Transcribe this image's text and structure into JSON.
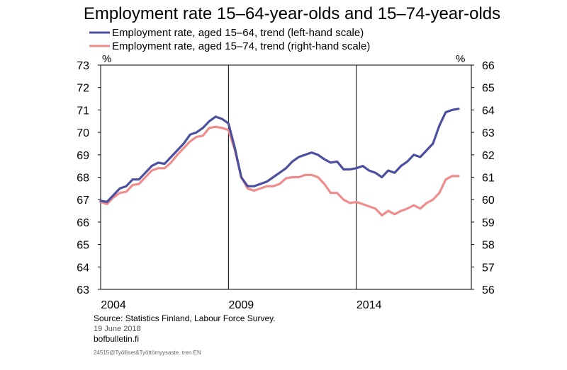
{
  "title": "Employment rate 15–64-year-olds and 15–74-year-olds",
  "chart_data": {
    "type": "line",
    "title": "Employment rate 15–64-year-olds and 15–74-year-olds",
    "left_axis": {
      "unit": "%",
      "ylim": [
        63,
        73
      ],
      "ticks": [
        "63",
        "64",
        "65",
        "66",
        "67",
        "68",
        "69",
        "70",
        "71",
        "72",
        "73"
      ]
    },
    "right_axis": {
      "unit": "%",
      "ylim": [
        56,
        66
      ],
      "ticks": [
        "56",
        "57",
        "58",
        "59",
        "60",
        "61",
        "62",
        "63",
        "64",
        "65",
        "66"
      ]
    },
    "x_ticks": [
      "2004",
      "2009",
      "2014"
    ],
    "xlim": [
      2004,
      2018.5
    ],
    "grid": "vertical lines at 2009 and 2014",
    "legend_position": "top",
    "series": [
      {
        "name": "Employment rate, aged 15–64, trend (left-hand scale)",
        "axis": "left",
        "color": "#4b4fa0",
        "x": [
          2004.0,
          2004.25,
          2004.5,
          2004.75,
          2005.0,
          2005.25,
          2005.5,
          2005.75,
          2006.0,
          2006.25,
          2006.5,
          2006.75,
          2007.0,
          2007.25,
          2007.5,
          2007.75,
          2008.0,
          2008.25,
          2008.5,
          2008.75,
          2009.0,
          2009.25,
          2009.5,
          2009.75,
          2010.0,
          2010.25,
          2010.5,
          2010.75,
          2011.0,
          2011.25,
          2011.5,
          2011.75,
          2012.0,
          2012.25,
          2012.5,
          2012.75,
          2013.0,
          2013.25,
          2013.5,
          2013.75,
          2014.0,
          2014.25,
          2014.5,
          2014.75,
          2015.0,
          2015.25,
          2015.5,
          2015.75,
          2016.0,
          2016.25,
          2016.5,
          2016.75,
          2017.0,
          2017.25,
          2017.5,
          2017.75,
          2018.0
        ],
        "values": [
          66.95,
          66.9,
          67.2,
          67.5,
          67.6,
          67.9,
          67.9,
          68.2,
          68.5,
          68.65,
          68.6,
          68.9,
          69.2,
          69.5,
          69.9,
          70.0,
          70.2,
          70.5,
          70.7,
          70.6,
          70.4,
          69.3,
          68.0,
          67.6,
          67.6,
          67.7,
          67.8,
          68.0,
          68.2,
          68.4,
          68.7,
          68.9,
          69.0,
          69.1,
          69.0,
          68.8,
          68.65,
          68.7,
          68.35,
          68.35,
          68.4,
          68.5,
          68.3,
          68.2,
          68.0,
          68.3,
          68.2,
          68.5,
          68.7,
          69.0,
          68.9,
          69.2,
          69.5,
          70.3,
          70.9,
          71.0,
          71.05
        ]
      },
      {
        "name": "Employment rate, aged 15–74, trend (right-hand scale)",
        "axis": "right",
        "color": "#ef8d8d",
        "x": [
          2004.0,
          2004.25,
          2004.5,
          2004.75,
          2005.0,
          2005.25,
          2005.5,
          2005.75,
          2006.0,
          2006.25,
          2006.5,
          2006.75,
          2007.0,
          2007.25,
          2007.5,
          2007.75,
          2008.0,
          2008.25,
          2008.5,
          2008.75,
          2009.0,
          2009.25,
          2009.5,
          2009.75,
          2010.0,
          2010.25,
          2010.5,
          2010.75,
          2011.0,
          2011.25,
          2011.5,
          2011.75,
          2012.0,
          2012.25,
          2012.5,
          2012.75,
          2013.0,
          2013.25,
          2013.5,
          2013.75,
          2014.0,
          2014.25,
          2014.5,
          2014.75,
          2015.0,
          2015.25,
          2015.5,
          2015.75,
          2016.0,
          2016.25,
          2016.5,
          2016.75,
          2017.0,
          2017.25,
          2017.5,
          2017.75,
          2018.0
        ],
        "values": [
          59.9,
          59.8,
          60.1,
          60.3,
          60.35,
          60.65,
          60.7,
          61.0,
          61.3,
          61.4,
          61.4,
          61.65,
          62.0,
          62.3,
          62.6,
          62.8,
          62.85,
          63.2,
          63.25,
          63.2,
          63.1,
          62.2,
          61.0,
          60.5,
          60.4,
          60.5,
          60.6,
          60.6,
          60.7,
          60.95,
          61.0,
          61.0,
          61.1,
          61.1,
          61.0,
          60.7,
          60.3,
          60.3,
          60.0,
          59.85,
          59.9,
          59.8,
          59.7,
          59.6,
          59.3,
          59.5,
          59.35,
          59.5,
          59.6,
          59.75,
          59.6,
          59.85,
          60.0,
          60.3,
          60.9,
          61.05,
          61.05
        ]
      }
    ]
  },
  "source": "Source: Statistics Finland,  Labour Force Survey.",
  "date": "19 June 2018",
  "website": "bofbulletin.fi",
  "code": "24515@Työlliset&Työttömyysaste. tren EN"
}
